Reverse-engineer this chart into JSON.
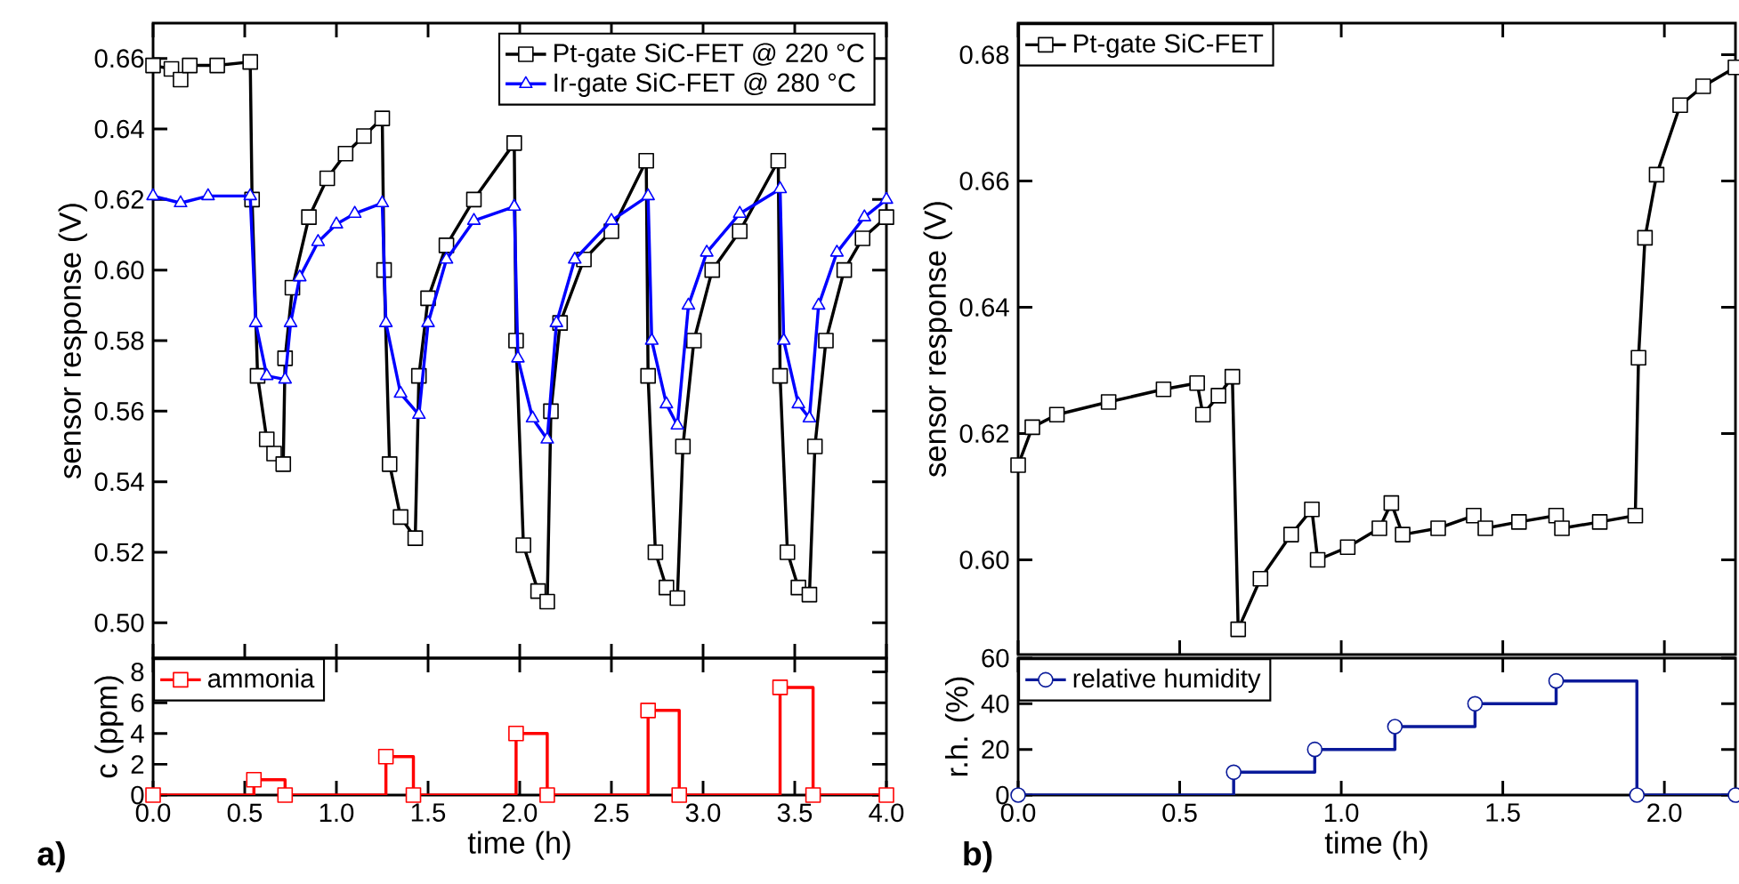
{
  "chart_data": [
    {
      "type": "line",
      "ylabel": "sensor response (V)",
      "xlim": [
        0,
        4
      ],
      "ylim": [
        0.49,
        0.67
      ],
      "tick_labels": "y",
      "legend": "top right",
      "xticks": [
        0,
        0.5,
        1,
        1.5,
        2,
        2.5,
        3,
        3.5,
        4
      ],
      "yticks": [
        {
          "value": 0.5,
          "label": "0.50"
        },
        {
          "value": 0.52,
          "label": "0.52"
        },
        {
          "value": 0.54,
          "label": "0.54"
        },
        {
          "value": 0.56,
          "label": "0.56"
        },
        {
          "value": 0.58,
          "label": "0.58"
        },
        {
          "value": 0.6,
          "label": "0.60"
        },
        {
          "value": 0.62,
          "label": "0.62"
        },
        {
          "value": 0.64,
          "label": "0.64"
        },
        {
          "value": 0.66,
          "label": "0.66"
        }
      ],
      "series": [
        {
          "name": "Pt-gate SiC-FET @ 220 °C",
          "color": "#000000",
          "marker": "square",
          "x": [
            0,
            0.1,
            0.15,
            0.2,
            0.35,
            0.53,
            0.54,
            0.57,
            0.62,
            0.66,
            0.71,
            0.72,
            0.76,
            0.85,
            0.95,
            1.05,
            1.15,
            1.25,
            1.26,
            1.29,
            1.35,
            1.43,
            1.45,
            1.5,
            1.6,
            1.75,
            1.97,
            1.98,
            2.02,
            2.1,
            2.15,
            2.17,
            2.22,
            2.35,
            2.5,
            2.69,
            2.7,
            2.74,
            2.8,
            2.86,
            2.89,
            2.95,
            3.05,
            3.2,
            3.41,
            3.42,
            3.46,
            3.52,
            3.58,
            3.61,
            3.67,
            3.77,
            3.87,
            4.0
          ],
          "values": [
            0.658,
            0.657,
            0.654,
            0.658,
            0.658,
            0.659,
            0.62,
            0.57,
            0.552,
            0.548,
            0.545,
            0.575,
            0.595,
            0.615,
            0.626,
            0.633,
            0.638,
            0.643,
            0.6,
            0.545,
            0.53,
            0.524,
            0.57,
            0.592,
            0.607,
            0.62,
            0.636,
            0.58,
            0.522,
            0.509,
            0.506,
            0.56,
            0.585,
            0.603,
            0.611,
            0.631,
            0.57,
            0.52,
            0.51,
            0.507,
            0.55,
            0.58,
            0.6,
            0.611,
            0.631,
            0.57,
            0.52,
            0.51,
            0.508,
            0.55,
            0.58,
            0.6,
            0.609,
            0.615
          ]
        },
        {
          "name": "Ir-gate SiC-FET @ 280 °C",
          "color": "#0000ff",
          "marker": "triangle",
          "x": [
            0,
            0.15,
            0.3,
            0.53,
            0.56,
            0.62,
            0.72,
            0.75,
            0.8,
            0.9,
            1.0,
            1.1,
            1.25,
            1.27,
            1.35,
            1.45,
            1.5,
            1.6,
            1.75,
            1.97,
            1.99,
            2.07,
            2.15,
            2.2,
            2.3,
            2.5,
            2.7,
            2.72,
            2.8,
            2.86,
            2.92,
            3.02,
            3.2,
            3.42,
            3.44,
            3.52,
            3.58,
            3.63,
            3.73,
            3.88,
            4.0
          ],
          "values": [
            0.621,
            0.619,
            0.621,
            0.621,
            0.585,
            0.57,
            0.569,
            0.585,
            0.598,
            0.608,
            0.613,
            0.616,
            0.619,
            0.585,
            0.565,
            0.559,
            0.585,
            0.603,
            0.614,
            0.618,
            0.575,
            0.558,
            0.552,
            0.585,
            0.603,
            0.614,
            0.621,
            0.58,
            0.562,
            0.556,
            0.59,
            0.605,
            0.616,
            0.623,
            0.58,
            0.562,
            0.558,
            0.59,
            0.605,
            0.615,
            0.62
          ]
        }
      ]
    },
    {
      "type": "step",
      "xlabel": "time (h)",
      "ylabel": "c (ppm)",
      "xlim": [
        0,
        4
      ],
      "ylim": [
        0,
        8.9
      ],
      "legend": "top left",
      "annotations": [
        "a)"
      ],
      "xticks": [
        {
          "value": 0,
          "label": "0.0"
        },
        {
          "value": 0.5,
          "label": "0.5"
        },
        {
          "value": 1,
          "label": "1.0"
        },
        {
          "value": 1.5,
          "label": "1.5"
        },
        {
          "value": 2,
          "label": "2.0"
        },
        {
          "value": 2.5,
          "label": "2.5"
        },
        {
          "value": 3,
          "label": "3.0"
        },
        {
          "value": 3.5,
          "label": "3.5"
        },
        {
          "value": 4,
          "label": "4.0"
        }
      ],
      "yticks": [
        0,
        2,
        4,
        6,
        8
      ],
      "series": [
        {
          "name": "ammonia",
          "color": "#ff0000",
          "marker": "square",
          "x": [
            0,
            0.55,
            0.72,
            1.27,
            1.42,
            1.98,
            2.15,
            2.7,
            2.87,
            3.42,
            3.6,
            4.0
          ],
          "values": [
            0,
            1,
            0,
            2.5,
            0,
            4,
            0,
            5.5,
            0,
            7,
            0,
            0
          ]
        }
      ]
    },
    {
      "type": "line",
      "ylabel": "sensor response (V)",
      "xlim": [
        0,
        2.22
      ],
      "ylim": [
        0.585,
        0.685
      ],
      "tick_labels": "y",
      "legend": "top left",
      "xticks": [
        0,
        0.5,
        1,
        1.5,
        2
      ],
      "yticks": [
        {
          "value": 0.6,
          "label": "0.60"
        },
        {
          "value": 0.62,
          "label": "0.62"
        },
        {
          "value": 0.64,
          "label": "0.64"
        },
        {
          "value": 0.66,
          "label": "0.66"
        },
        {
          "value": 0.68,
          "label": "0.68"
        }
      ],
      "series": [
        {
          "name": "Pt-gate SiC-FET",
          "color": "#000000",
          "marker": "square",
          "x": [
            0,
            0.044,
            0.12,
            0.28,
            0.45,
            0.554,
            0.572,
            0.62,
            0.663,
            0.681,
            0.75,
            0.845,
            0.909,
            0.927,
            1.02,
            1.118,
            1.155,
            1.19,
            1.3,
            1.41,
            1.446,
            1.55,
            1.665,
            1.683,
            1.8,
            1.91,
            1.92,
            1.94,
            1.976,
            2.049,
            2.12,
            2.22
          ],
          "values": [
            0.615,
            0.621,
            0.623,
            0.625,
            0.627,
            0.628,
            0.623,
            0.626,
            0.629,
            0.589,
            0.597,
            0.604,
            0.608,
            0.6,
            0.602,
            0.605,
            0.609,
            0.604,
            0.605,
            0.607,
            0.605,
            0.606,
            0.607,
            0.605,
            0.606,
            0.607,
            0.632,
            0.651,
            0.661,
            0.672,
            0.675,
            0.678
          ]
        }
      ]
    },
    {
      "type": "step",
      "xlabel": "time (h)",
      "ylabel": "r.h. (%)",
      "xlim": [
        0,
        2.22
      ],
      "ylim": [
        0,
        60
      ],
      "legend": "top left",
      "annotations": [
        "b)"
      ],
      "xticks": [
        {
          "value": 0,
          "label": "0.0"
        },
        {
          "value": 0.5,
          "label": "0.5"
        },
        {
          "value": 1,
          "label": "1.0"
        },
        {
          "value": 1.5,
          "label": "1.5"
        },
        {
          "value": 2,
          "label": "2.0"
        }
      ],
      "yticks": [
        0,
        20,
        40,
        60
      ],
      "series": [
        {
          "name": "relative humidity",
          "color": "#0a1a9a",
          "marker": "circle",
          "x": [
            0,
            0.667,
            0.918,
            1.166,
            1.414,
            1.665,
            1.915,
            2.22
          ],
          "values": [
            0,
            10,
            20,
            30,
            40,
            50,
            0,
            0
          ]
        }
      ]
    }
  ]
}
